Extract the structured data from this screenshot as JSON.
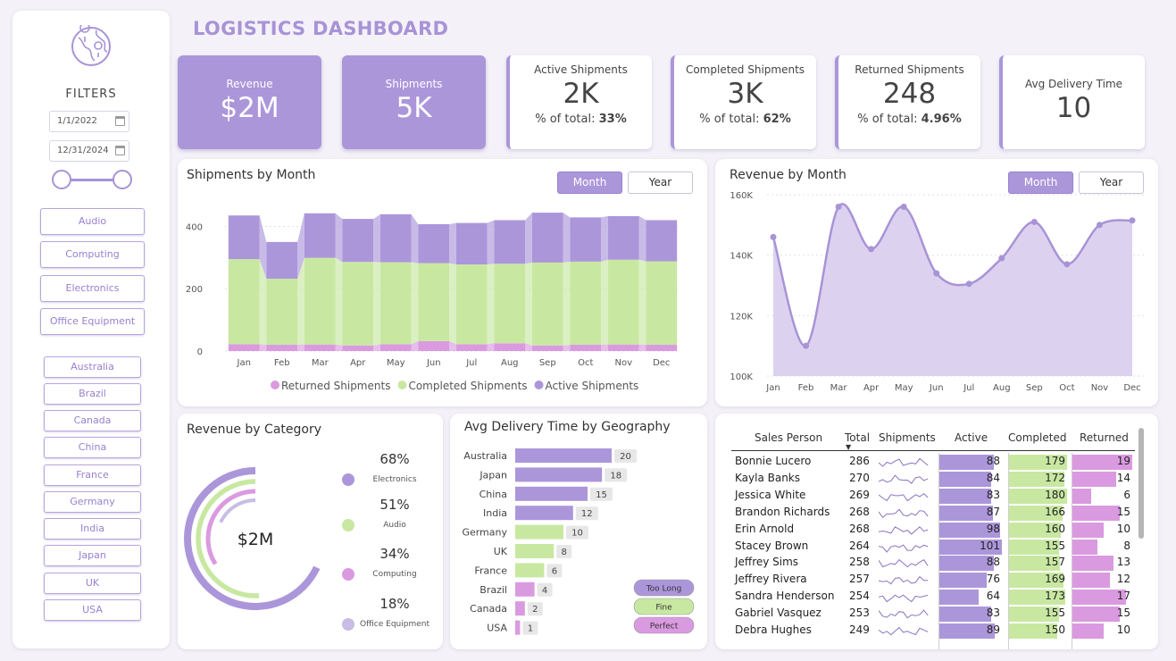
{
  "title": "LOGISTICS DASHBOARD",
  "filters": {
    "title": "FILTERS",
    "date_start": "1/1/2022",
    "date_end": "12/31/2024",
    "categories": [
      "Audio",
      "Computing",
      "Electronics",
      "Office Equipment"
    ],
    "geographies": [
      "Australia",
      "Brazil",
      "Canada",
      "China",
      "France",
      "Germany",
      "India",
      "Japan",
      "UK",
      "USA"
    ]
  },
  "kpis": {
    "revenue": {
      "label": "Revenue",
      "value": "$2M"
    },
    "shipments": {
      "label": "Shipments",
      "value": "5K"
    },
    "active": {
      "label": "Active Shipments",
      "value": "2K",
      "pct_label": "% of total:",
      "pct": "33%"
    },
    "completed": {
      "label": "Completed Shipments",
      "value": "3K",
      "pct_label": "% of total:",
      "pct": "62%"
    },
    "returned": {
      "label": "Returned Shipments",
      "value": "248",
      "pct_label": "% of total:",
      "pct": "4.96%"
    },
    "delivery": {
      "label": "Avg Delivery Time",
      "value": "10"
    }
  },
  "toggles": {
    "month": "Month",
    "year": "Year"
  },
  "colors": {
    "purple": "#ac96da",
    "green": "#c8e8a2",
    "pink": "#da9ae0",
    "light_purple": "#dcd2ef"
  },
  "shipments_chart": {
    "title": "Shipments by Month",
    "categories": [
      "Jan",
      "Feb",
      "Mar",
      "Apr",
      "May",
      "Jun",
      "Jul",
      "Aug",
      "Sep",
      "Oct",
      "Nov",
      "Dec"
    ],
    "ylim": [
      0,
      450
    ],
    "yticks": [
      "0",
      "200",
      "400"
    ],
    "series": [
      {
        "name": "Returned Shipments",
        "color": "#da9ae0",
        "values": [
          22,
          20,
          21,
          18,
          22,
          32,
          22,
          25,
          18,
          20,
          21,
          20
        ]
      },
      {
        "name": "Completed Shipments",
        "color": "#c8e8a2",
        "values": [
          273,
          212,
          278,
          268,
          263,
          250,
          256,
          255,
          266,
          267,
          272,
          268
        ]
      },
      {
        "name": "Active Shipments",
        "color": "#ac96da",
        "values": [
          140,
          118,
          143,
          138,
          154,
          125,
          133,
          140,
          160,
          142,
          140,
          132
        ]
      }
    ]
  },
  "revenue_chart": {
    "title": "Revenue by Month",
    "type": "area",
    "categories": [
      "Jan",
      "Feb",
      "Mar",
      "Apr",
      "May",
      "Jun",
      "Jul",
      "Aug",
      "Sep",
      "Oct",
      "Nov",
      "Dec"
    ],
    "ylim": [
      100000,
      160000
    ],
    "yticks": [
      {
        "v": 100000,
        "label": "100K"
      },
      {
        "v": 120000,
        "label": "120K"
      },
      {
        "v": 140000,
        "label": "140K"
      },
      {
        "v": 160000,
        "label": "160K"
      }
    ],
    "values": [
      146000,
      110000,
      156000,
      142000,
      156000,
      134000,
      130500,
      139000,
      151000,
      137000,
      150000,
      151500
    ]
  },
  "category_chart": {
    "title": "Revenue by Category",
    "center_label": "$2M",
    "items": [
      {
        "name": "Electronics",
        "pct": "68%",
        "value": 68,
        "color": "#ac96da"
      },
      {
        "name": "Audio",
        "pct": "51%",
        "value": 51,
        "color": "#c8e8a2"
      },
      {
        "name": "Computing",
        "pct": "34%",
        "value": 34,
        "color": "#da9ae0"
      },
      {
        "name": "Office Equipment",
        "pct": "18%",
        "value": 18,
        "color": "#c8bde4"
      }
    ]
  },
  "geo_chart": {
    "title": "Avg Delivery Time by Geography",
    "items": [
      {
        "name": "Australia",
        "value": 20,
        "status": "Too Long"
      },
      {
        "name": "Japan",
        "value": 18,
        "status": "Too Long"
      },
      {
        "name": "China",
        "value": 15,
        "status": "Too Long"
      },
      {
        "name": "India",
        "value": 12,
        "status": "Too Long"
      },
      {
        "name": "Germany",
        "value": 10,
        "status": "Fine"
      },
      {
        "name": "UK",
        "value": 8,
        "status": "Fine"
      },
      {
        "name": "France",
        "value": 6,
        "status": "Fine"
      },
      {
        "name": "Brazil",
        "value": 4,
        "status": "Perfect"
      },
      {
        "name": "Canada",
        "value": 2,
        "status": "Perfect"
      },
      {
        "name": "USA",
        "value": 1,
        "status": "Perfect"
      }
    ],
    "legend": [
      {
        "label": "Too Long",
        "color": "#ac96da"
      },
      {
        "label": "Fine",
        "color": "#c8e8a2"
      },
      {
        "label": "Perfect",
        "color": "#da9ae0"
      }
    ]
  },
  "sales_table": {
    "headers": {
      "person": "Sales Person",
      "total": "Total",
      "shipments": "Shipments",
      "active": "Active",
      "completed": "Completed",
      "returned": "Returned"
    },
    "rows": [
      {
        "name": "Bonnie Lucero",
        "total": "286",
        "active": 88,
        "completed": 179,
        "returned": 19
      },
      {
        "name": "Kayla Banks",
        "total": "270",
        "active": 84,
        "completed": 172,
        "returned": 14
      },
      {
        "name": "Jessica White",
        "total": "269",
        "active": 83,
        "completed": 180,
        "returned": 6
      },
      {
        "name": "Brandon Richards",
        "total": "268",
        "active": 87,
        "completed": 166,
        "returned": 15
      },
      {
        "name": "Erin Arnold",
        "total": "268",
        "active": 98,
        "completed": 160,
        "returned": 10
      },
      {
        "name": "Stacey Brown",
        "total": "264",
        "active": 101,
        "completed": 155,
        "returned": 8
      },
      {
        "name": "Jeffrey Sims",
        "total": "258",
        "active": 88,
        "completed": 157,
        "returned": 13
      },
      {
        "name": "Jeffrey Rivera",
        "total": "257",
        "active": 76,
        "completed": 169,
        "returned": 12
      },
      {
        "name": "Sandra Henderson",
        "total": "254",
        "active": 64,
        "completed": 173,
        "returned": 17
      },
      {
        "name": "Gabriel Vasquez",
        "total": "253",
        "active": 83,
        "completed": 155,
        "returned": 15
      },
      {
        "name": "Debra Hughes",
        "total": "249",
        "active": 89,
        "completed": 150,
        "returned": 10
      }
    ]
  }
}
